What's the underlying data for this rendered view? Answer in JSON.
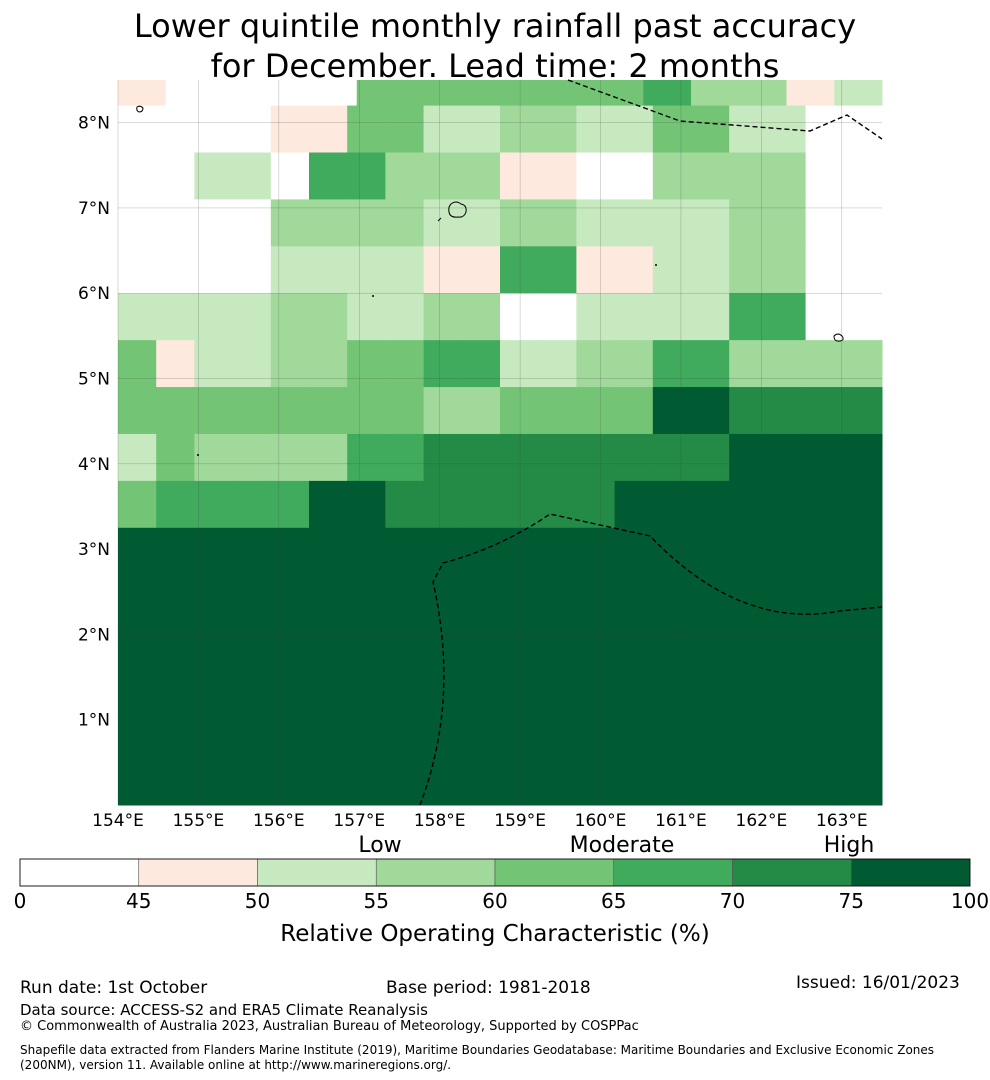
{
  "title": {
    "line1": "Lower quintile monthly rainfall past accuracy",
    "line2": "for December. Lead time: 2 months"
  },
  "map": {
    "lon_labels": [
      "154°E",
      "155°E",
      "156°E",
      "157°E",
      "158°E",
      "159°E",
      "160°E",
      "161°E",
      "162°E",
      "163°E"
    ],
    "lat_labels": [
      "8°N",
      "7°N",
      "6°N",
      "5°N",
      "4°N",
      "3°N",
      "2°N",
      "1°N"
    ],
    "lon_range": [
      154.0,
      163.5
    ],
    "lat_range": [
      0.0,
      8.5
    ],
    "cell_values_rows_north_to_south": [
      [
        47,
        0,
        0,
        0,
        0,
        62,
        62,
        62,
        62,
        62,
        62,
        68,
        58,
        58,
        47,
        52
      ],
      [
        0,
        0,
        0,
        0,
        47,
        47,
        63,
        63,
        52,
        52,
        58,
        58,
        52,
        52,
        63,
        63,
        52,
        52,
        0,
        0
      ],
      [
        0,
        0,
        52,
        52,
        0,
        67,
        67,
        58,
        58,
        58,
        47,
        47,
        0,
        0,
        58,
        58,
        58,
        58,
        0,
        0
      ],
      [
        0,
        0,
        0,
        0,
        58,
        58,
        58,
        58,
        52,
        52,
        58,
        58,
        52,
        52,
        52,
        52,
        58,
        58,
        0,
        0
      ],
      [
        0,
        0,
        0,
        0,
        52,
        52,
        52,
        52,
        47,
        47,
        67,
        67,
        47,
        47,
        52,
        52,
        58,
        58,
        0,
        0
      ],
      [
        52,
        52,
        52,
        52,
        58,
        58,
        52,
        52,
        58,
        58,
        0,
        0,
        52,
        52,
        52,
        52,
        67,
        67,
        0,
        0
      ],
      [
        63,
        47,
        52,
        52,
        58,
        58,
        63,
        63,
        67,
        67,
        52,
        52,
        58,
        58,
        67,
        67,
        58,
        58,
        58,
        58
      ],
      [
        63,
        63,
        63,
        63,
        63,
        63,
        63,
        63,
        58,
        58,
        63,
        63,
        63,
        63,
        80,
        80,
        72,
        72,
        72,
        72
      ],
      [
        52,
        63,
        58,
        58,
        58,
        58,
        67,
        67,
        72,
        72,
        72,
        72,
        72,
        72,
        72,
        72,
        80,
        80,
        80,
        80
      ],
      [
        63,
        67,
        67,
        67,
        67,
        80,
        80,
        72,
        72,
        72,
        72,
        72,
        72,
        80,
        80,
        80,
        80,
        80,
        80,
        80
      ],
      [
        80
      ]
    ],
    "colors": {
      "lt45": "#ffffff",
      "c45_50": "#fee9df",
      "c50_55": "#c7e9c0",
      "c55_60": "#a1d99b",
      "c60_65": "#74c476",
      "c65_70": "#41ab5d",
      "c70_75": "#238b45",
      "c75_100": "#005a32"
    },
    "boundary_style": "dashed"
  },
  "colorbar": {
    "levels": [
      "Low",
      "Moderate",
      "High"
    ],
    "ticks": [
      "0",
      "45",
      "50",
      "55",
      "60",
      "65",
      "70",
      "75",
      "100"
    ],
    "colors": [
      "#ffffff",
      "#fee9df",
      "#c7e9c0",
      "#a1d99b",
      "#74c476",
      "#41ab5d",
      "#238b45",
      "#005a32"
    ],
    "title": "Relative Operating Characteristic (%)"
  },
  "footer": {
    "run_date": "Run date: 1st October",
    "base_period": "Base period: 1981-2018",
    "issued": "Issued: 16/01/2023",
    "data_source": "Data source: ACCESS-S2 and ERA5 Climate Reanalysis",
    "copyright": "© Commonwealth of Australia 2023, Australian Bureau of Meteorology, Supported by COSPPac",
    "shapefile_line1": "Shapefile data extracted from Flanders Marine Institute (2019), Maritime Boundaries Geodatabase: Maritime Boundaries and Exclusive Economic Zones",
    "shapefile_line2": "(200NM), version 11. Available online at http://www.marineregions.org/."
  }
}
